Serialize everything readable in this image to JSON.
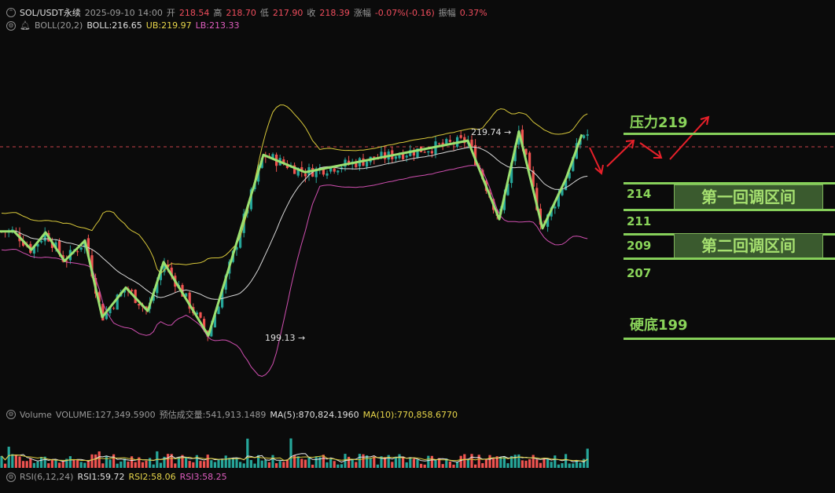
{
  "header": {
    "symbol": "SOL/USDT永续",
    "datetime": "2025-09-10 14:00",
    "open_label": "开",
    "open": "218.54",
    "high_label": "高",
    "high": "218.70",
    "low_label": "低",
    "low": "217.90",
    "close_label": "收",
    "close": "218.39",
    "chg_label": "涨幅",
    "chg": "-0.07%(-0.16)",
    "amp_label": "振幅",
    "amp": "0.37%"
  },
  "boll": {
    "label": "BOLL(20,2)",
    "mid": "BOLL:216.65",
    "ub": "UB:219.97",
    "lb": "LB:213.33"
  },
  "volume": {
    "label": "Volume",
    "vol": "VOLUME:127,349.5900",
    "est": "预估成交量:541,913.1489",
    "ma5": "MA(5):870,824.1960",
    "ma10": "MA(10):770,858.6770"
  },
  "rsi": {
    "label": "RSI(6,12,24)",
    "rsi1": "RSI1:59.72",
    "rsi2": "RSI2:58.06",
    "rsi3": "RSI3:58.25"
  },
  "annotations": {
    "resistance": "压力219",
    "l214": "214",
    "l211": "211",
    "l209": "209",
    "l207": "207",
    "zone1": "第一回调区间",
    "zone2": "第二回调区间",
    "floor": "硬底199",
    "high_mark": "219.74 →",
    "low_mark": "199.13 →"
  },
  "colors": {
    "up": "#26a69a",
    "down": "#ef5350",
    "ub": "#d8c83a",
    "mid": "#d8d8d8",
    "lb": "#d04fb0",
    "zigzag": "#9be070",
    "arrow": "#e8202a",
    "level": "#86cf5a"
  },
  "chart_data": {
    "type": "candlestick",
    "symbol": "SOL/USDT",
    "price_range": [
      196,
      224
    ],
    "current_price": 218.39,
    "marked_high": 219.74,
    "marked_low": 199.13,
    "levels": [
      219,
      214,
      211,
      209,
      207,
      199
    ],
    "zigzag_path_prices": [
      209.4,
      207.6,
      209.3,
      206.5,
      208.5,
      201.0,
      203.9,
      201.6,
      206.4,
      199.2,
      216.9,
      215.2,
      218.3,
      210.6,
      219.2,
      209.7,
      214.6,
      218.9
    ],
    "boll_last": {
      "mid": 216.65,
      "ub": 219.97,
      "lb": 213.33
    }
  }
}
